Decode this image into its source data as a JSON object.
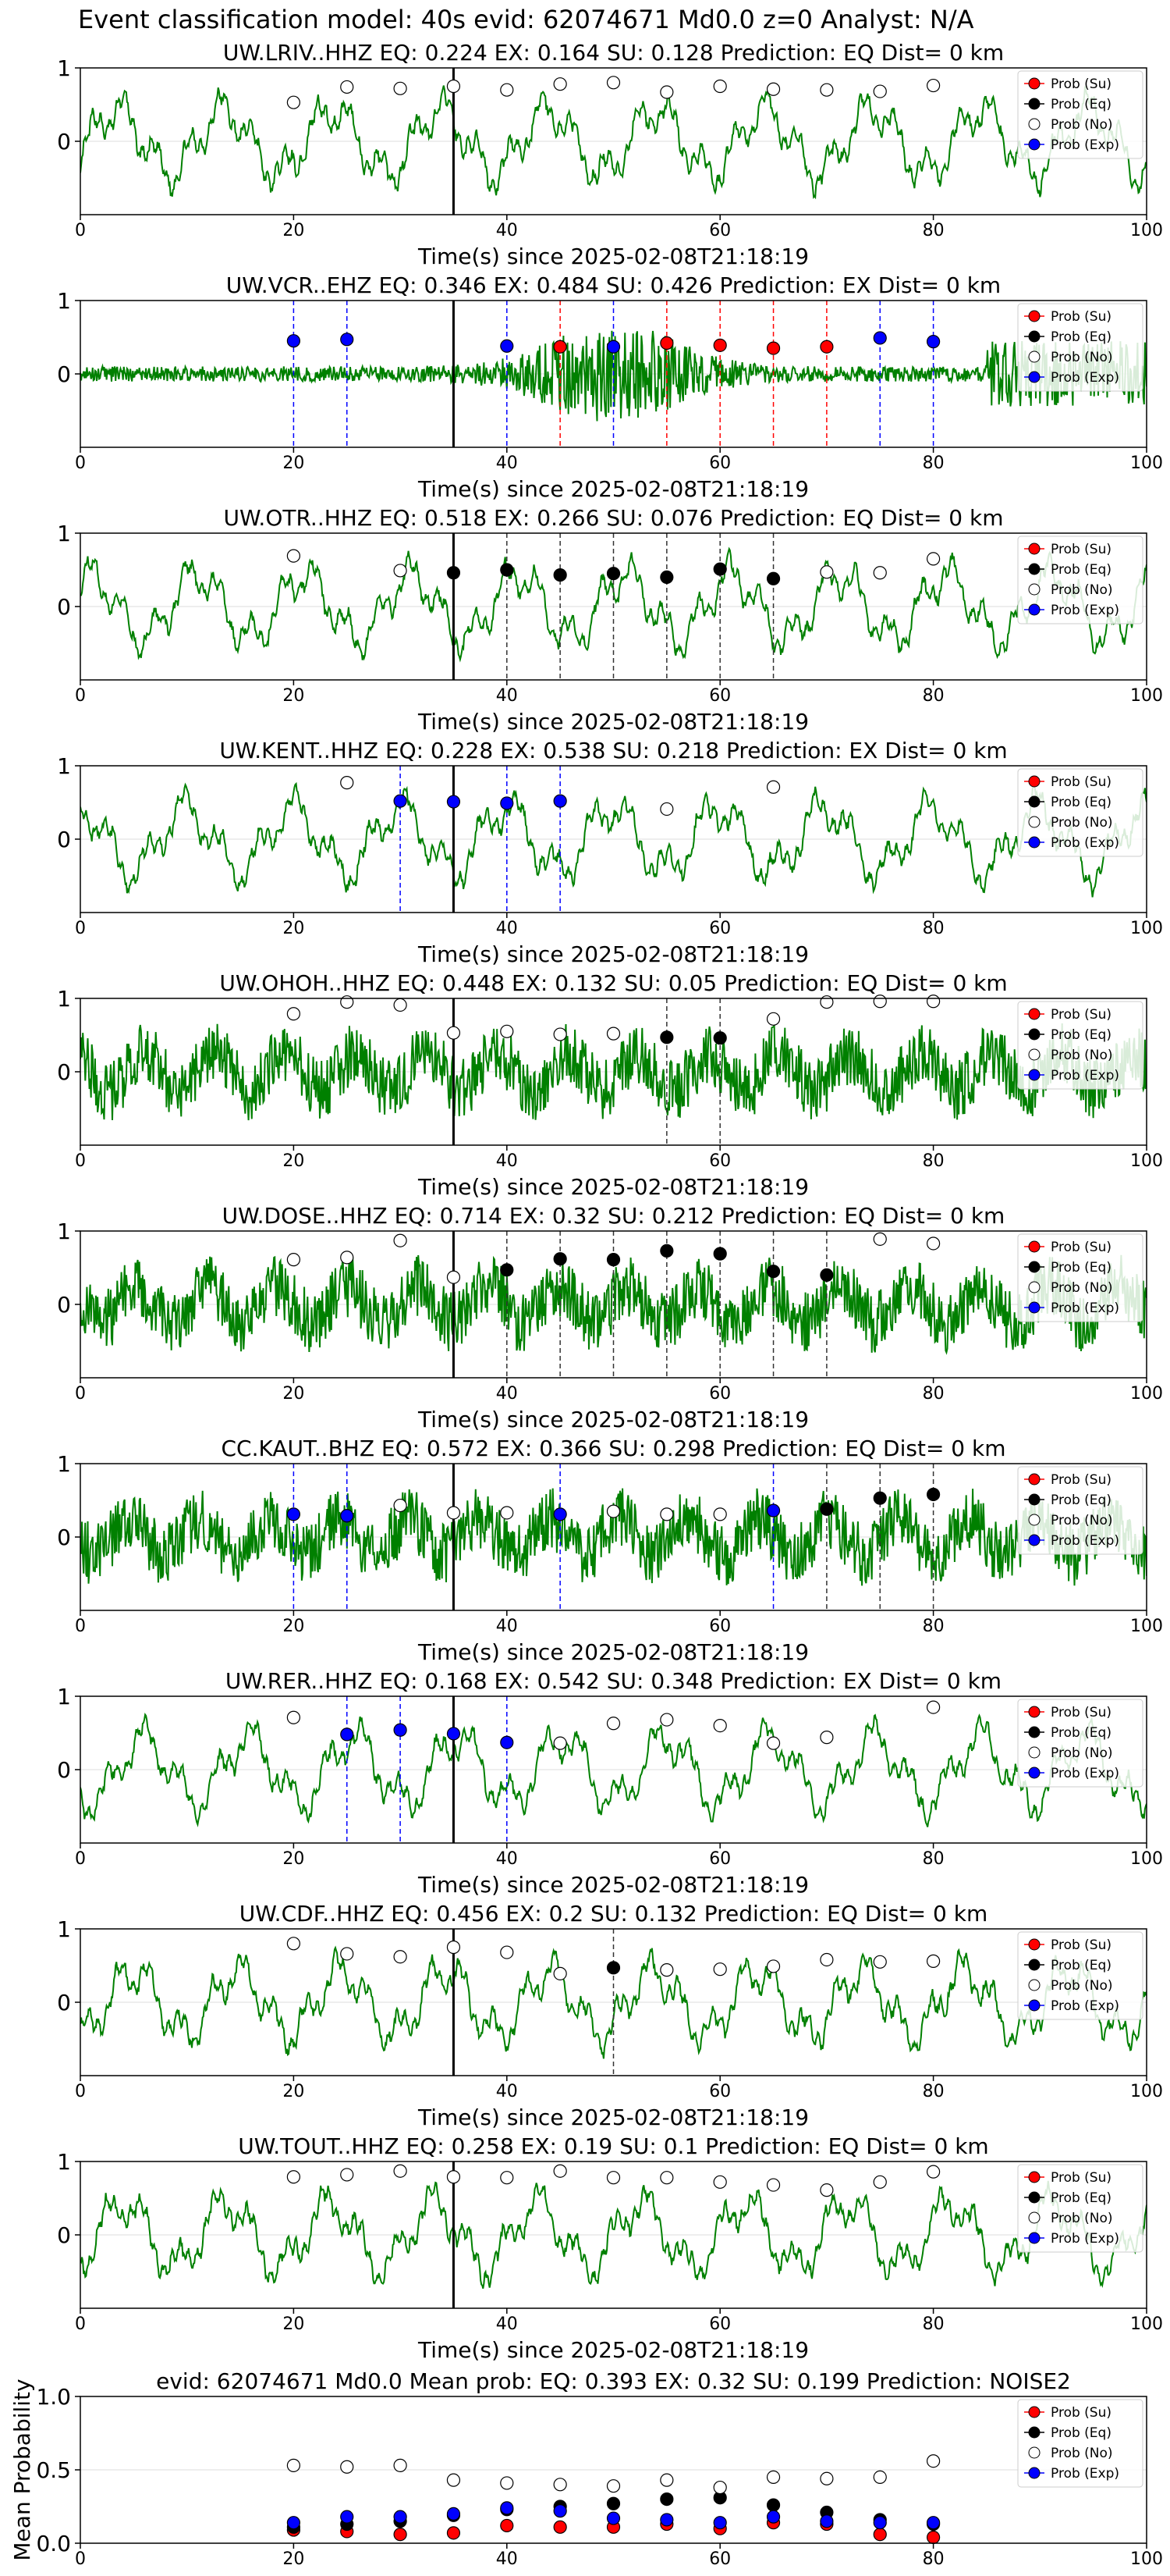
{
  "suptitle": "Event classification model: 40s evid: 62074671 Md0.0 z=0 Analyst: N/A",
  "colors": {
    "waveform": "#008000",
    "su": "#ff0000",
    "eq": "#000000",
    "no": "#ffffff",
    "exp": "#0000ff",
    "event_line": "#000000",
    "grid": "#dddddd"
  },
  "legend_labels": [
    "Prob (Su)",
    "Prob (Eq)",
    "Prob (No)",
    "Prob (Exp)"
  ],
  "chart_data": [
    {
      "type": "line",
      "title": "UW.LRIV..HHZ   EQ: 0.224  EX: 0.164  SU: 0.128   Prediction: EQ    Dist= 0 km",
      "xlabel": "Time(s) since 2025-02-08T21:18:19",
      "xlim": [
        0,
        100
      ],
      "ylim": [
        -1,
        1
      ],
      "xticks": [
        0,
        20,
        40,
        60,
        80,
        100
      ],
      "yticks": [
        1,
        0
      ],
      "event_marker_x": 35,
      "legend_position": "right",
      "waveform_style": "smooth",
      "points": [
        {
          "x": 20,
          "y": 0.53,
          "class": "No"
        },
        {
          "x": 25,
          "y": 0.74,
          "class": "No"
        },
        {
          "x": 30,
          "y": 0.72,
          "class": "No"
        },
        {
          "x": 35,
          "y": 0.75,
          "class": "No"
        },
        {
          "x": 40,
          "y": 0.7,
          "class": "No"
        },
        {
          "x": 45,
          "y": 0.78,
          "class": "No"
        },
        {
          "x": 50,
          "y": 0.8,
          "class": "No"
        },
        {
          "x": 55,
          "y": 0.67,
          "class": "No"
        },
        {
          "x": 60,
          "y": 0.75,
          "class": "No"
        },
        {
          "x": 65,
          "y": 0.71,
          "class": "No"
        },
        {
          "x": 70,
          "y": 0.7,
          "class": "No"
        },
        {
          "x": 75,
          "y": 0.68,
          "class": "No"
        },
        {
          "x": 80,
          "y": 0.76,
          "class": "No"
        }
      ]
    },
    {
      "type": "line",
      "title": "UW.VCR..EHZ   EQ: 0.346  EX: 0.484  SU: 0.426   Prediction: EX    Dist= 0 km",
      "xlabel": "Time(s) since 2025-02-08T21:18:19",
      "xlim": [
        0,
        100
      ],
      "ylim": [
        -1,
        1
      ],
      "xticks": [
        0,
        20,
        40,
        60,
        80,
        100
      ],
      "yticks": [
        1,
        0
      ],
      "event_marker_x": 35,
      "legend_position": "right",
      "waveform_style": "noisy-burst",
      "points": [
        {
          "x": 20,
          "y": 0.45,
          "class": "Exp"
        },
        {
          "x": 25,
          "y": 0.47,
          "class": "Exp"
        },
        {
          "x": 40,
          "y": 0.38,
          "class": "Exp"
        },
        {
          "x": 45,
          "y": 0.37,
          "class": "Su"
        },
        {
          "x": 50,
          "y": 0.37,
          "class": "Exp"
        },
        {
          "x": 55,
          "y": 0.42,
          "class": "Su"
        },
        {
          "x": 60,
          "y": 0.39,
          "class": "Su"
        },
        {
          "x": 65,
          "y": 0.35,
          "class": "Su"
        },
        {
          "x": 70,
          "y": 0.37,
          "class": "Su"
        },
        {
          "x": 75,
          "y": 0.49,
          "class": "Exp"
        },
        {
          "x": 80,
          "y": 0.44,
          "class": "Exp"
        }
      ]
    },
    {
      "type": "line",
      "title": "UW.OTR..HHZ   EQ: 0.518  EX: 0.266  SU: 0.076   Prediction: EQ    Dist= 0 km",
      "xlabel": "Time(s) since 2025-02-08T21:18:19",
      "xlim": [
        0,
        100
      ],
      "ylim": [
        -1,
        1
      ],
      "xticks": [
        0,
        20,
        40,
        60,
        80,
        100
      ],
      "yticks": [
        1,
        0
      ],
      "event_marker_x": 35,
      "legend_position": "right",
      "waveform_style": "smooth",
      "points": [
        {
          "x": 20,
          "y": 0.69,
          "class": "No"
        },
        {
          "x": 30,
          "y": 0.49,
          "class": "No"
        },
        {
          "x": 35,
          "y": 0.46,
          "class": "Eq"
        },
        {
          "x": 40,
          "y": 0.5,
          "class": "Eq"
        },
        {
          "x": 45,
          "y": 0.43,
          "class": "Eq"
        },
        {
          "x": 50,
          "y": 0.45,
          "class": "Eq"
        },
        {
          "x": 55,
          "y": 0.4,
          "class": "Eq"
        },
        {
          "x": 60,
          "y": 0.51,
          "class": "Eq"
        },
        {
          "x": 65,
          "y": 0.38,
          "class": "Eq"
        },
        {
          "x": 70,
          "y": 0.47,
          "class": "No"
        },
        {
          "x": 75,
          "y": 0.46,
          "class": "No"
        },
        {
          "x": 80,
          "y": 0.65,
          "class": "No"
        }
      ]
    },
    {
      "type": "line",
      "title": "UW.KENT..HHZ   EQ: 0.228  EX: 0.538  SU: 0.218   Prediction: EX    Dist= 0 km",
      "xlabel": "Time(s) since 2025-02-08T21:18:19",
      "xlim": [
        0,
        100
      ],
      "ylim": [
        -1,
        1
      ],
      "xticks": [
        0,
        20,
        40,
        60,
        80,
        100
      ],
      "yticks": [
        1,
        0
      ],
      "event_marker_x": 35,
      "legend_position": "right",
      "waveform_style": "smooth",
      "points": [
        {
          "x": 25,
          "y": 0.77,
          "class": "No"
        },
        {
          "x": 30,
          "y": 0.52,
          "class": "Exp"
        },
        {
          "x": 35,
          "y": 0.51,
          "class": "Exp"
        },
        {
          "x": 40,
          "y": 0.49,
          "class": "Exp"
        },
        {
          "x": 45,
          "y": 0.52,
          "class": "Exp"
        },
        {
          "x": 55,
          "y": 0.41,
          "class": "No"
        },
        {
          "x": 65,
          "y": 0.71,
          "class": "No"
        }
      ]
    },
    {
      "type": "line",
      "title": "UW.OHOH..HHZ   EQ: 0.448  EX: 0.132  SU: 0.05   Prediction: EQ    Dist= 0 km",
      "xlabel": "Time(s) since 2025-02-08T21:18:19",
      "xlim": [
        0,
        100
      ],
      "ylim": [
        -1,
        1
      ],
      "xticks": [
        0,
        20,
        40,
        60,
        80,
        100
      ],
      "yticks": [
        1,
        0
      ],
      "event_marker_x": 35,
      "legend_position": "right",
      "waveform_style": "noisy",
      "points": [
        {
          "x": 20,
          "y": 0.79,
          "class": "No"
        },
        {
          "x": 25,
          "y": 0.95,
          "class": "No"
        },
        {
          "x": 30,
          "y": 0.91,
          "class": "No"
        },
        {
          "x": 35,
          "y": 0.53,
          "class": "No"
        },
        {
          "x": 40,
          "y": 0.55,
          "class": "No"
        },
        {
          "x": 45,
          "y": 0.51,
          "class": "No"
        },
        {
          "x": 50,
          "y": 0.52,
          "class": "No"
        },
        {
          "x": 55,
          "y": 0.47,
          "class": "Eq"
        },
        {
          "x": 60,
          "y": 0.46,
          "class": "Eq"
        },
        {
          "x": 65,
          "y": 0.72,
          "class": "No"
        },
        {
          "x": 70,
          "y": 0.95,
          "class": "No"
        },
        {
          "x": 75,
          "y": 0.96,
          "class": "No"
        },
        {
          "x": 80,
          "y": 0.96,
          "class": "No"
        }
      ]
    },
    {
      "type": "line",
      "title": "UW.DOSE..HHZ   EQ: 0.714  EX: 0.32  SU: 0.212   Prediction: EQ    Dist= 0 km",
      "xlabel": "Time(s) since 2025-02-08T21:18:19",
      "xlim": [
        0,
        100
      ],
      "ylim": [
        -1,
        1
      ],
      "xticks": [
        0,
        20,
        40,
        60,
        80,
        100
      ],
      "yticks": [
        1,
        0
      ],
      "event_marker_x": 35,
      "legend_position": "right",
      "waveform_style": "noisy",
      "points": [
        {
          "x": 20,
          "y": 0.61,
          "class": "No"
        },
        {
          "x": 25,
          "y": 0.64,
          "class": "No"
        },
        {
          "x": 30,
          "y": 0.87,
          "class": "No"
        },
        {
          "x": 35,
          "y": 0.37,
          "class": "No"
        },
        {
          "x": 40,
          "y": 0.47,
          "class": "Eq"
        },
        {
          "x": 45,
          "y": 0.62,
          "class": "Eq"
        },
        {
          "x": 50,
          "y": 0.61,
          "class": "Eq"
        },
        {
          "x": 55,
          "y": 0.73,
          "class": "Eq"
        },
        {
          "x": 60,
          "y": 0.69,
          "class": "Eq"
        },
        {
          "x": 65,
          "y": 0.45,
          "class": "Eq"
        },
        {
          "x": 70,
          "y": 0.4,
          "class": "Eq"
        },
        {
          "x": 75,
          "y": 0.89,
          "class": "No"
        },
        {
          "x": 80,
          "y": 0.83,
          "class": "No"
        }
      ]
    },
    {
      "type": "line",
      "title": "CC.KAUT..BHZ   EQ: 0.572  EX: 0.366  SU: 0.298   Prediction: EQ    Dist= 0 km",
      "xlabel": "Time(s) since 2025-02-08T21:18:19",
      "xlim": [
        0,
        100
      ],
      "ylim": [
        -1,
        1
      ],
      "xticks": [
        0,
        20,
        40,
        60,
        80,
        100
      ],
      "yticks": [
        1,
        0
      ],
      "event_marker_x": 35,
      "legend_position": "right",
      "waveform_style": "noisy",
      "points": [
        {
          "x": 20,
          "y": 0.31,
          "class": "Exp"
        },
        {
          "x": 25,
          "y": 0.29,
          "class": "Exp"
        },
        {
          "x": 30,
          "y": 0.43,
          "class": "No"
        },
        {
          "x": 35,
          "y": 0.33,
          "class": "No"
        },
        {
          "x": 40,
          "y": 0.33,
          "class": "No"
        },
        {
          "x": 45,
          "y": 0.31,
          "class": "Exp"
        },
        {
          "x": 50,
          "y": 0.35,
          "class": "No"
        },
        {
          "x": 55,
          "y": 0.31,
          "class": "No"
        },
        {
          "x": 60,
          "y": 0.31,
          "class": "No"
        },
        {
          "x": 65,
          "y": 0.36,
          "class": "Exp"
        },
        {
          "x": 70,
          "y": 0.38,
          "class": "Eq"
        },
        {
          "x": 75,
          "y": 0.53,
          "class": "Eq"
        },
        {
          "x": 80,
          "y": 0.58,
          "class": "Eq"
        }
      ]
    },
    {
      "type": "line",
      "title": "UW.RER..HHZ   EQ: 0.168  EX: 0.542  SU: 0.348   Prediction: EX    Dist= 0 km",
      "xlabel": "Time(s) since 2025-02-08T21:18:19",
      "xlim": [
        0,
        100
      ],
      "ylim": [
        -1,
        1
      ],
      "xticks": [
        0,
        20,
        40,
        60,
        80,
        100
      ],
      "yticks": [
        1,
        0
      ],
      "event_marker_x": 35,
      "legend_position": "right",
      "waveform_style": "smooth",
      "points": [
        {
          "x": 20,
          "y": 0.71,
          "class": "No"
        },
        {
          "x": 25,
          "y": 0.48,
          "class": "Exp"
        },
        {
          "x": 30,
          "y": 0.54,
          "class": "Exp"
        },
        {
          "x": 35,
          "y": 0.49,
          "class": "Exp"
        },
        {
          "x": 40,
          "y": 0.37,
          "class": "Exp"
        },
        {
          "x": 45,
          "y": 0.36,
          "class": "No"
        },
        {
          "x": 50,
          "y": 0.63,
          "class": "No"
        },
        {
          "x": 55,
          "y": 0.68,
          "class": "No"
        },
        {
          "x": 60,
          "y": 0.6,
          "class": "No"
        },
        {
          "x": 65,
          "y": 0.36,
          "class": "No"
        },
        {
          "x": 70,
          "y": 0.44,
          "class": "No"
        },
        {
          "x": 80,
          "y": 0.85,
          "class": "No"
        }
      ]
    },
    {
      "type": "line",
      "title": "UW.CDF..HHZ   EQ: 0.456  EX: 0.2  SU: 0.132   Prediction: EQ    Dist= 0 km",
      "xlabel": "Time(s) since 2025-02-08T21:18:19",
      "xlim": [
        0,
        100
      ],
      "ylim": [
        -1,
        1
      ],
      "xticks": [
        0,
        20,
        40,
        60,
        80,
        100
      ],
      "yticks": [
        1,
        0
      ],
      "event_marker_x": 35,
      "legend_position": "right",
      "waveform_style": "smooth",
      "points": [
        {
          "x": 20,
          "y": 0.8,
          "class": "No"
        },
        {
          "x": 25,
          "y": 0.66,
          "class": "No"
        },
        {
          "x": 30,
          "y": 0.62,
          "class": "No"
        },
        {
          "x": 35,
          "y": 0.75,
          "class": "No"
        },
        {
          "x": 40,
          "y": 0.68,
          "class": "No"
        },
        {
          "x": 45,
          "y": 0.39,
          "class": "No"
        },
        {
          "x": 50,
          "y": 0.47,
          "class": "Eq"
        },
        {
          "x": 55,
          "y": 0.44,
          "class": "No"
        },
        {
          "x": 60,
          "y": 0.45,
          "class": "No"
        },
        {
          "x": 65,
          "y": 0.49,
          "class": "No"
        },
        {
          "x": 70,
          "y": 0.58,
          "class": "No"
        },
        {
          "x": 75,
          "y": 0.55,
          "class": "No"
        },
        {
          "x": 80,
          "y": 0.56,
          "class": "No"
        }
      ]
    },
    {
      "type": "line",
      "title": "UW.TOUT..HHZ   EQ: 0.258  EX: 0.19  SU: 0.1   Prediction: EQ    Dist= 0 km",
      "xlabel": "Time(s) since 2025-02-08T21:18:19",
      "xlim": [
        0,
        100
      ],
      "ylim": [
        -1,
        1
      ],
      "xticks": [
        0,
        20,
        40,
        60,
        80,
        100
      ],
      "yticks": [
        1,
        0
      ],
      "event_marker_x": 35,
      "legend_position": "right",
      "waveform_style": "smooth",
      "points": [
        {
          "x": 20,
          "y": 0.79,
          "class": "No"
        },
        {
          "x": 25,
          "y": 0.82,
          "class": "No"
        },
        {
          "x": 30,
          "y": 0.87,
          "class": "No"
        },
        {
          "x": 35,
          "y": 0.79,
          "class": "No"
        },
        {
          "x": 40,
          "y": 0.78,
          "class": "No"
        },
        {
          "x": 45,
          "y": 0.87,
          "class": "No"
        },
        {
          "x": 50,
          "y": 0.78,
          "class": "No"
        },
        {
          "x": 55,
          "y": 0.78,
          "class": "No"
        },
        {
          "x": 60,
          "y": 0.72,
          "class": "No"
        },
        {
          "x": 65,
          "y": 0.68,
          "class": "No"
        },
        {
          "x": 70,
          "y": 0.61,
          "class": "No"
        },
        {
          "x": 75,
          "y": 0.72,
          "class": "No"
        },
        {
          "x": 80,
          "y": 0.86,
          "class": "No"
        }
      ]
    },
    {
      "type": "scatter",
      "title": "evid: 62074671  Md0.0   Mean prob:   EQ: 0.393  EX: 0.32  SU: 0.199   Prediction: NOISE2",
      "xlabel": "",
      "ylabel": "Mean Probability",
      "xlim": [
        0,
        100
      ],
      "ylim": [
        0,
        1
      ],
      "xticks": [
        0,
        20,
        40,
        60,
        80,
        100
      ],
      "yticks": [
        0.0,
        0.5,
        1.0
      ],
      "ytick_labels": [
        "0.0",
        "0.5",
        "1.0"
      ],
      "legend_position": "right",
      "x": [
        20,
        25,
        30,
        35,
        40,
        45,
        50,
        55,
        60,
        65,
        70,
        75,
        80
      ],
      "series": [
        {
          "name": "Prob (Su)",
          "class": "Su",
          "values": [
            0.09,
            0.08,
            0.06,
            0.07,
            0.12,
            0.11,
            0.11,
            0.13,
            0.1,
            0.14,
            0.13,
            0.06,
            0.04
          ]
        },
        {
          "name": "Prob (Eq)",
          "class": "Eq",
          "values": [
            0.11,
            0.13,
            0.15,
            0.19,
            0.23,
            0.25,
            0.27,
            0.3,
            0.31,
            0.26,
            0.21,
            0.16,
            0.13
          ]
        },
        {
          "name": "Prob (No)",
          "class": "No",
          "values": [
            0.53,
            0.52,
            0.53,
            0.43,
            0.41,
            0.4,
            0.39,
            0.43,
            0.38,
            0.45,
            0.44,
            0.45,
            0.56
          ]
        },
        {
          "name": "Prob (Exp)",
          "class": "Exp",
          "values": [
            0.14,
            0.18,
            0.18,
            0.2,
            0.24,
            0.22,
            0.17,
            0.16,
            0.14,
            0.18,
            0.15,
            0.14,
            0.14
          ]
        }
      ]
    }
  ]
}
